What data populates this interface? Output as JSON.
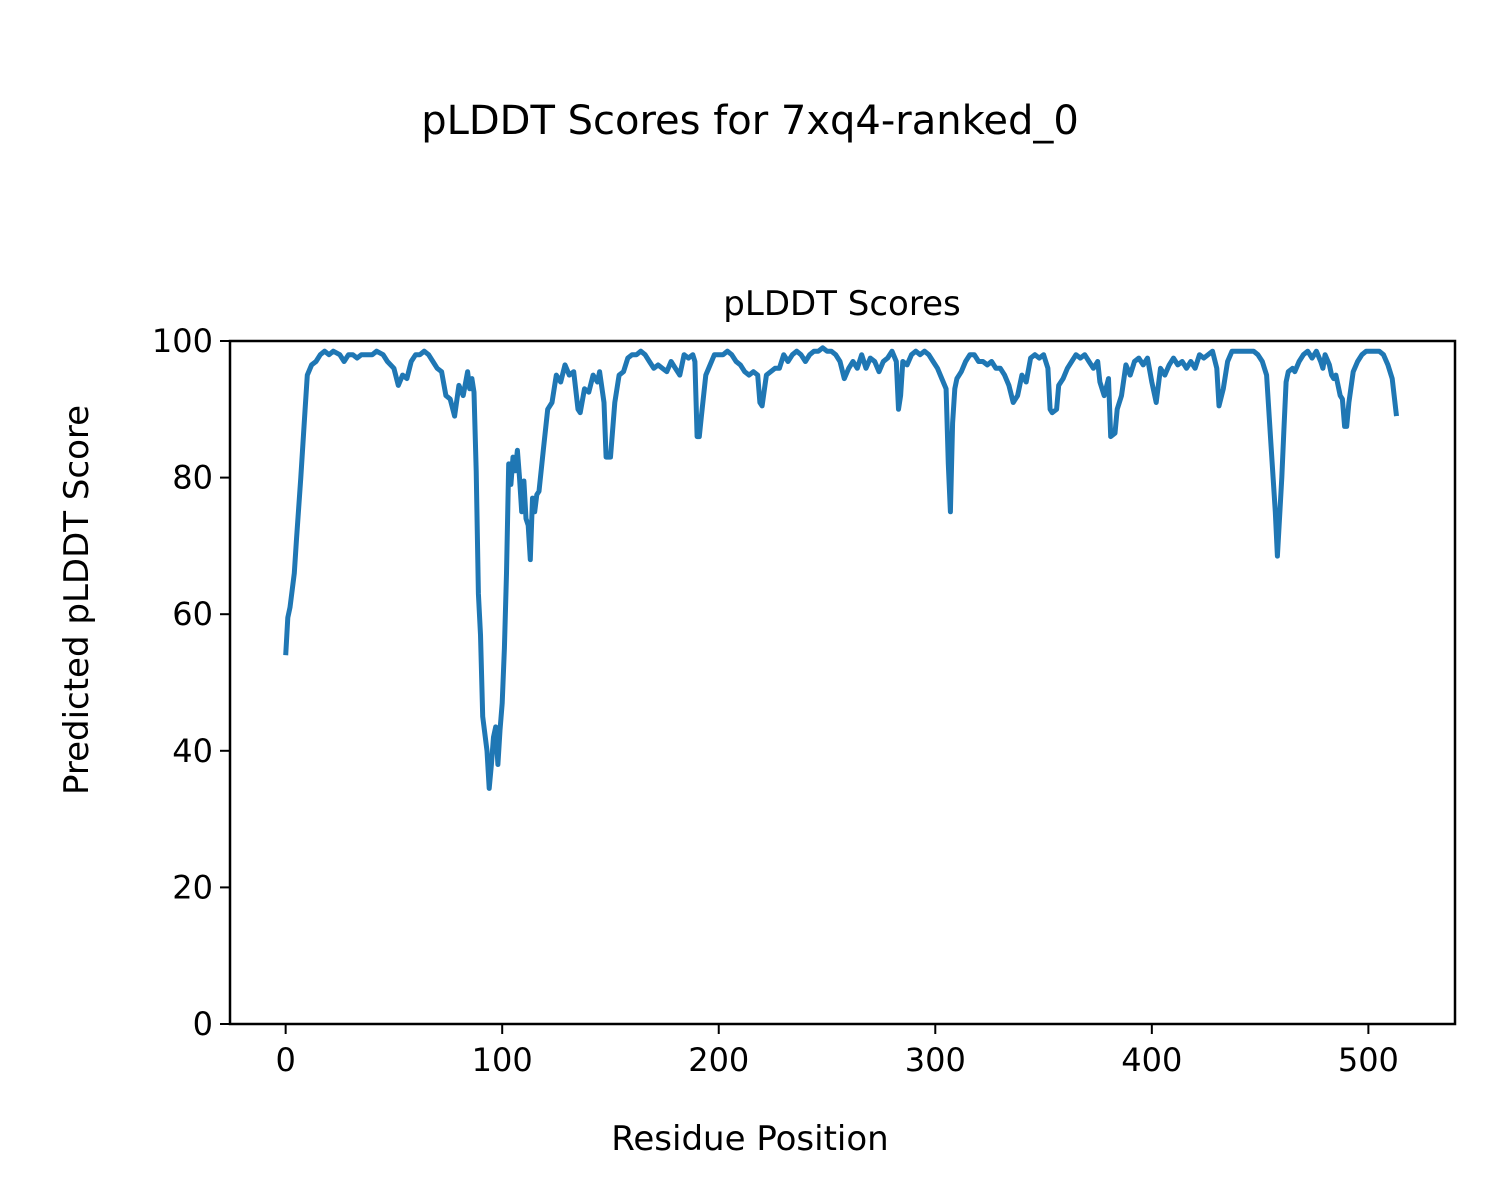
{
  "chart_data": {
    "type": "line",
    "suptitle": "pLDDT Scores for 7xq4-ranked_0",
    "title": "pLDDT Scores",
    "xlabel": "Residue Position",
    "ylabel": "Predicted pLDDT Score",
    "xlim": [
      -25.7,
      540
    ],
    "ylim": [
      0,
      100
    ],
    "xticks": [
      0,
      100,
      200,
      300,
      400,
      500
    ],
    "yticks": [
      0,
      20,
      40,
      60,
      80,
      100
    ],
    "grid": false,
    "color": "#1f77b4",
    "series": [
      {
        "name": "pLDDT",
        "points": [
          [
            0,
            54
          ],
          [
            1,
            59.5
          ],
          [
            2,
            61
          ],
          [
            4,
            66
          ],
          [
            5,
            71
          ],
          [
            7,
            80
          ],
          [
            9,
            90
          ],
          [
            10,
            95
          ],
          [
            12,
            96.5
          ],
          [
            14,
            97
          ],
          [
            16,
            98
          ],
          [
            18,
            98.5
          ],
          [
            20,
            98
          ],
          [
            22,
            98.5
          ],
          [
            25,
            98
          ],
          [
            27,
            97
          ],
          [
            29,
            98
          ],
          [
            31,
            98
          ],
          [
            33,
            97.5
          ],
          [
            35,
            98
          ],
          [
            38,
            98
          ],
          [
            40,
            98
          ],
          [
            42,
            98.5
          ],
          [
            45,
            98
          ],
          [
            47,
            97
          ],
          [
            50,
            96
          ],
          [
            52,
            93.5
          ],
          [
            54,
            95
          ],
          [
            56,
            94.5
          ],
          [
            58,
            97
          ],
          [
            60,
            98
          ],
          [
            62,
            98
          ],
          [
            64,
            98.5
          ],
          [
            66,
            98
          ],
          [
            68,
            97
          ],
          [
            70,
            96
          ],
          [
            72,
            95.5
          ],
          [
            74,
            92
          ],
          [
            76,
            91.5
          ],
          [
            78,
            89
          ],
          [
            80,
            93.5
          ],
          [
            82,
            92
          ],
          [
            84,
            95.5
          ],
          [
            85,
            93
          ],
          [
            86,
            94.5
          ],
          [
            87,
            92.5
          ],
          [
            88,
            81
          ],
          [
            89,
            63
          ],
          [
            90,
            57
          ],
          [
            91,
            45
          ],
          [
            93,
            40
          ],
          [
            94,
            34.5
          ],
          [
            95,
            38
          ],
          [
            96,
            42
          ],
          [
            97,
            43.5
          ],
          [
            98,
            38
          ],
          [
            99,
            43
          ],
          [
            100,
            47
          ],
          [
            101,
            55
          ],
          [
            102,
            66
          ],
          [
            103,
            82
          ],
          [
            104,
            79
          ],
          [
            105,
            83
          ],
          [
            106,
            81
          ],
          [
            107,
            84
          ],
          [
            108,
            80
          ],
          [
            109,
            75
          ],
          [
            110,
            79.5
          ],
          [
            111,
            74
          ],
          [
            112,
            73
          ],
          [
            113,
            68
          ],
          [
            114,
            77
          ],
          [
            115,
            75
          ],
          [
            116,
            77.5
          ],
          [
            117,
            78
          ],
          [
            119,
            84
          ],
          [
            121,
            90
          ],
          [
            123,
            91
          ],
          [
            125,
            95
          ],
          [
            127,
            94
          ],
          [
            129,
            96.5
          ],
          [
            131,
            95
          ],
          [
            133,
            95.5
          ],
          [
            135,
            90
          ],
          [
            136,
            89.5
          ],
          [
            138,
            93
          ],
          [
            140,
            92.5
          ],
          [
            142,
            95
          ],
          [
            144,
            94
          ],
          [
            145,
            95.5
          ],
          [
            147,
            91
          ],
          [
            148,
            83
          ],
          [
            150,
            83
          ],
          [
            152,
            91
          ],
          [
            154,
            95
          ],
          [
            156,
            95.5
          ],
          [
            158,
            97.5
          ],
          [
            160,
            98
          ],
          [
            162,
            98
          ],
          [
            164,
            98.5
          ],
          [
            166,
            98
          ],
          [
            168,
            97
          ],
          [
            170,
            96
          ],
          [
            172,
            96.5
          ],
          [
            174,
            96
          ],
          [
            176,
            95.5
          ],
          [
            178,
            97
          ],
          [
            180,
            96
          ],
          [
            182,
            95
          ],
          [
            184,
            98
          ],
          [
            186,
            97.5
          ],
          [
            188,
            98
          ],
          [
            189,
            97
          ],
          [
            190,
            86
          ],
          [
            191,
            86
          ],
          [
            192,
            89
          ],
          [
            194,
            95
          ],
          [
            196,
            96.5
          ],
          [
            198,
            98
          ],
          [
            200,
            98
          ],
          [
            202,
            98
          ],
          [
            204,
            98.5
          ],
          [
            206,
            98
          ],
          [
            208,
            97
          ],
          [
            210,
            96.5
          ],
          [
            212,
            95.5
          ],
          [
            214,
            95
          ],
          [
            216,
            95.5
          ],
          [
            218,
            95
          ],
          [
            219,
            91
          ],
          [
            220,
            90.5
          ],
          [
            222,
            95
          ],
          [
            224,
            95.5
          ],
          [
            226,
            96
          ],
          [
            228,
            96
          ],
          [
            230,
            98
          ],
          [
            232,
            97
          ],
          [
            234,
            98
          ],
          [
            236,
            98.5
          ],
          [
            238,
            98
          ],
          [
            240,
            97
          ],
          [
            242,
            98
          ],
          [
            244,
            98.5
          ],
          [
            246,
            98.5
          ],
          [
            248,
            99
          ],
          [
            250,
            98.5
          ],
          [
            252,
            98.5
          ],
          [
            254,
            98
          ],
          [
            256,
            97
          ],
          [
            258,
            94.5
          ],
          [
            260,
            96
          ],
          [
            262,
            97
          ],
          [
            264,
            96
          ],
          [
            266,
            98
          ],
          [
            268,
            96
          ],
          [
            270,
            97.5
          ],
          [
            272,
            97
          ],
          [
            274,
            95.5
          ],
          [
            276,
            97
          ],
          [
            278,
            97.5
          ],
          [
            280,
            98.5
          ],
          [
            282,
            97
          ],
          [
            283,
            90
          ],
          [
            284,
            92
          ],
          [
            285,
            97
          ],
          [
            287,
            96.5
          ],
          [
            289,
            98
          ],
          [
            291,
            98.5
          ],
          [
            293,
            98
          ],
          [
            295,
            98.5
          ],
          [
            297,
            98
          ],
          [
            299,
            97
          ],
          [
            301,
            96
          ],
          [
            303,
            94.5
          ],
          [
            305,
            93
          ],
          [
            306,
            82
          ],
          [
            307,
            75
          ],
          [
            308,
            88
          ],
          [
            309,
            93
          ],
          [
            310,
            94.5
          ],
          [
            312,
            95.5
          ],
          [
            314,
            97
          ],
          [
            316,
            98
          ],
          [
            318,
            98
          ],
          [
            320,
            97
          ],
          [
            322,
            97
          ],
          [
            324,
            96.5
          ],
          [
            326,
            97
          ],
          [
            328,
            96
          ],
          [
            330,
            96
          ],
          [
            332,
            95
          ],
          [
            334,
            93.5
          ],
          [
            336,
            91
          ],
          [
            338,
            92
          ],
          [
            340,
            95
          ],
          [
            342,
            94
          ],
          [
            344,
            97.5
          ],
          [
            346,
            98
          ],
          [
            348,
            97.5
          ],
          [
            350,
            98
          ],
          [
            352,
            96
          ],
          [
            353,
            90
          ],
          [
            354,
            89.5
          ],
          [
            356,
            90
          ],
          [
            357,
            93.5
          ],
          [
            359,
            94.5
          ],
          [
            361,
            96
          ],
          [
            363,
            97
          ],
          [
            365,
            98
          ],
          [
            367,
            97.5
          ],
          [
            369,
            98
          ],
          [
            371,
            97
          ],
          [
            373,
            96
          ],
          [
            375,
            97
          ],
          [
            376,
            94
          ],
          [
            378,
            92
          ],
          [
            380,
            94.5
          ],
          [
            381,
            86
          ],
          [
            383,
            86.5
          ],
          [
            384,
            90
          ],
          [
            386,
            92
          ],
          [
            388,
            96.5
          ],
          [
            390,
            95
          ],
          [
            392,
            97
          ],
          [
            394,
            97.5
          ],
          [
            396,
            96.5
          ],
          [
            398,
            97.5
          ],
          [
            400,
            94
          ],
          [
            402,
            91
          ],
          [
            404,
            96
          ],
          [
            406,
            95
          ],
          [
            408,
            96.5
          ],
          [
            410,
            97.5
          ],
          [
            412,
            96.5
          ],
          [
            414,
            97
          ],
          [
            416,
            96
          ],
          [
            418,
            97
          ],
          [
            420,
            96
          ],
          [
            422,
            98
          ],
          [
            424,
            97.5
          ],
          [
            426,
            98
          ],
          [
            428,
            98.5
          ],
          [
            430,
            96
          ],
          [
            431,
            90.5
          ],
          [
            433,
            93
          ],
          [
            435,
            97
          ],
          [
            437,
            98.5
          ],
          [
            439,
            98.5
          ],
          [
            441,
            98.5
          ],
          [
            443,
            98.5
          ],
          [
            445,
            98.5
          ],
          [
            447,
            98.5
          ],
          [
            449,
            98
          ],
          [
            451,
            97
          ],
          [
            453,
            95
          ],
          [
            455,
            85
          ],
          [
            457,
            75
          ],
          [
            458,
            68.5
          ],
          [
            460,
            80
          ],
          [
            461,
            87
          ],
          [
            462,
            94
          ],
          [
            463,
            95.5
          ],
          [
            465,
            96
          ],
          [
            466,
            95.5
          ],
          [
            468,
            97
          ],
          [
            470,
            98
          ],
          [
            472,
            98.5
          ],
          [
            474,
            97.5
          ],
          [
            476,
            98.5
          ],
          [
            478,
            97
          ],
          [
            479,
            96
          ],
          [
            480,
            98
          ],
          [
            482,
            96.5
          ],
          [
            483,
            95
          ],
          [
            484,
            94.5
          ],
          [
            485,
            95
          ],
          [
            487,
            92
          ],
          [
            488,
            91.5
          ],
          [
            489,
            87.5
          ],
          [
            490,
            87.5
          ],
          [
            491,
            91
          ],
          [
            493,
            95.5
          ],
          [
            495,
            97
          ],
          [
            497,
            98
          ],
          [
            499,
            98.5
          ],
          [
            501,
            98.5
          ],
          [
            503,
            98.5
          ],
          [
            505,
            98.5
          ],
          [
            507,
            98
          ],
          [
            509,
            96.5
          ],
          [
            511,
            94.5
          ],
          [
            513,
            89
          ]
        ]
      }
    ]
  }
}
